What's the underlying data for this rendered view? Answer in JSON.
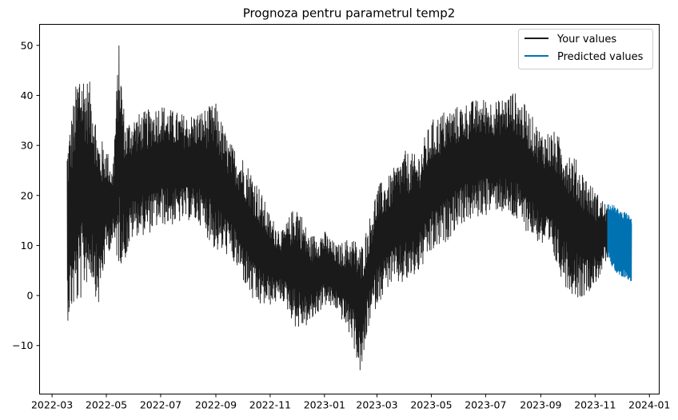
{
  "chart_data": {
    "type": "line",
    "title": "Prognoza pentru parametrul temp2",
    "xlabel": "",
    "ylabel": "",
    "x_type": "date",
    "xlim": [
      "2022-02-15",
      "2024-01-12"
    ],
    "ylim": [
      -19.7,
      54.2
    ],
    "x_ticks": [
      "2022-03",
      "2022-05",
      "2022-07",
      "2022-09",
      "2022-11",
      "2023-01",
      "2023-03",
      "2023-05",
      "2023-07",
      "2023-09",
      "2023-11",
      "2024-01"
    ],
    "y_ticks": [
      -10,
      0,
      10,
      20,
      30,
      40,
      50
    ],
    "grid": false,
    "legend": "top-right",
    "series": [
      {
        "name": "Your values",
        "color": "#1a1a1a",
        "envelope": [
          {
            "date": "2022-03-18",
            "low": -5.3,
            "high": 31.0
          },
          {
            "date": "2022-03-25",
            "low": -3.0,
            "high": 39.0
          },
          {
            "date": "2022-04-01",
            "low": -2.0,
            "high": 47.0
          },
          {
            "date": "2022-04-08",
            "low": 2.0,
            "high": 44.0
          },
          {
            "date": "2022-04-15",
            "low": 3.0,
            "high": 42.0
          },
          {
            "date": "2022-04-22",
            "low": -2.5,
            "high": 32.0
          },
          {
            "date": "2022-05-01",
            "low": 8.0,
            "high": 30.0
          },
          {
            "date": "2022-05-08",
            "low": 10.0,
            "high": 25.0
          },
          {
            "date": "2022-05-15",
            "low": 6.0,
            "high": 50.7
          },
          {
            "date": "2022-05-22",
            "low": 7.0,
            "high": 35.0
          },
          {
            "date": "2022-06-01",
            "low": 12.0,
            "high": 36.0
          },
          {
            "date": "2022-06-15",
            "low": 12.0,
            "high": 37.0
          },
          {
            "date": "2022-07-01",
            "low": 14.0,
            "high": 38.5
          },
          {
            "date": "2022-07-15",
            "low": 14.0,
            "high": 37.0
          },
          {
            "date": "2022-08-01",
            "low": 15.0,
            "high": 36.0
          },
          {
            "date": "2022-08-15",
            "low": 14.0,
            "high": 37.0
          },
          {
            "date": "2022-09-01",
            "low": 8.5,
            "high": 38.5
          },
          {
            "date": "2022-09-15",
            "low": 8.0,
            "high": 31.0
          },
          {
            "date": "2022-10-01",
            "low": 3.0,
            "high": 28.0
          },
          {
            "date": "2022-10-15",
            "low": -2.5,
            "high": 24.0
          },
          {
            "date": "2022-11-01",
            "low": -2.0,
            "high": 16.0
          },
          {
            "date": "2022-11-15",
            "low": -1.0,
            "high": 13.0
          },
          {
            "date": "2022-12-01",
            "low": -7.0,
            "high": 19.0
          },
          {
            "date": "2022-12-15",
            "low": -6.0,
            "high": 12.0
          },
          {
            "date": "2023-01-01",
            "low": -2.0,
            "high": 13.0
          },
          {
            "date": "2023-01-15",
            "low": -3.0,
            "high": 10.0
          },
          {
            "date": "2023-02-01",
            "low": -9.0,
            "high": 12.0
          },
          {
            "date": "2023-02-11",
            "low": -16.3,
            "high": 10.0
          },
          {
            "date": "2023-02-20",
            "low": -6.0,
            "high": 15.0
          },
          {
            "date": "2023-03-01",
            "low": -2.0,
            "high": 22.0
          },
          {
            "date": "2023-03-15",
            "low": 2.0,
            "high": 24.0
          },
          {
            "date": "2023-04-01",
            "low": 2.0,
            "high": 29.0
          },
          {
            "date": "2023-04-15",
            "low": 4.0,
            "high": 28.0
          },
          {
            "date": "2023-05-01",
            "low": 8.0,
            "high": 35.0
          },
          {
            "date": "2023-05-15",
            "low": 10.0,
            "high": 37.0
          },
          {
            "date": "2023-06-01",
            "low": 14.0,
            "high": 38.0
          },
          {
            "date": "2023-06-15",
            "low": 15.0,
            "high": 39.0
          },
          {
            "date": "2023-07-01",
            "low": 16.0,
            "high": 39.5
          },
          {
            "date": "2023-07-15",
            "low": 17.0,
            "high": 39.0
          },
          {
            "date": "2023-08-01",
            "low": 15.0,
            "high": 41.0
          },
          {
            "date": "2023-08-15",
            "low": 13.0,
            "high": 38.0
          },
          {
            "date": "2023-09-01",
            "low": 10.0,
            "high": 33.0
          },
          {
            "date": "2023-09-15",
            "low": 7.0,
            "high": 33.0
          },
          {
            "date": "2023-10-01",
            "low": 1.0,
            "high": 30.0
          },
          {
            "date": "2023-10-15",
            "low": -0.8,
            "high": 26.0
          },
          {
            "date": "2023-11-01",
            "low": 2.0,
            "high": 21.0
          },
          {
            "date": "2023-11-15",
            "low": 7.0,
            "high": 18.0
          }
        ]
      },
      {
        "name": "Predicted values",
        "color": "#0072b2",
        "envelope": [
          {
            "date": "2023-11-15",
            "low": 8.0,
            "high": 18.5
          },
          {
            "date": "2023-11-22",
            "low": 5.0,
            "high": 18.0
          },
          {
            "date": "2023-11-29",
            "low": 4.0,
            "high": 17.0
          },
          {
            "date": "2023-12-06",
            "low": 3.5,
            "high": 16.5
          },
          {
            "date": "2023-12-12",
            "low": 2.5,
            "high": 15.5
          }
        ]
      }
    ]
  }
}
